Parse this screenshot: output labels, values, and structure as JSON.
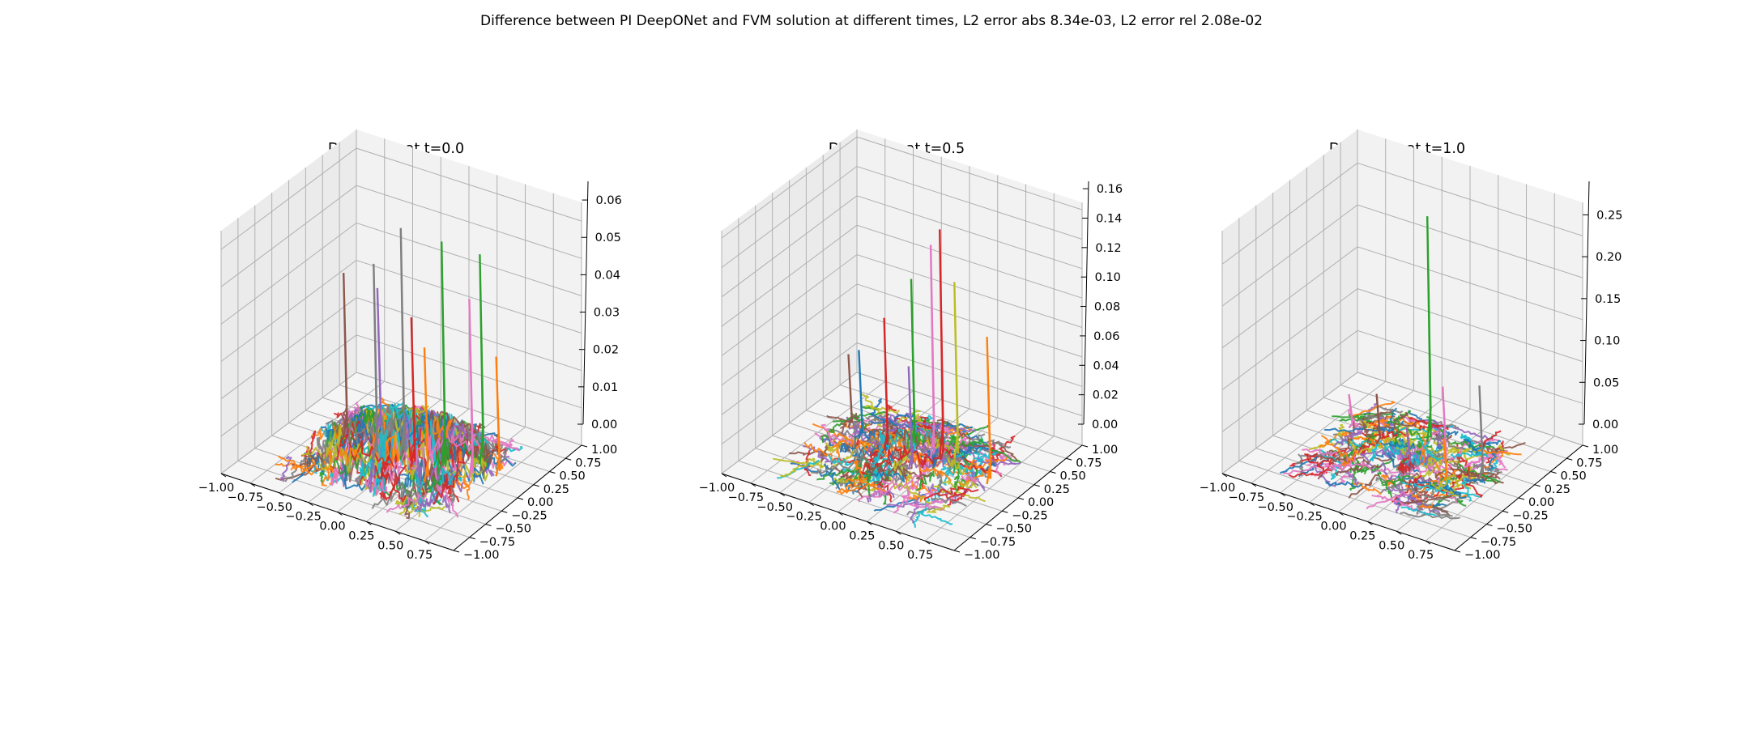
{
  "figure": {
    "suptitle": "Difference between PI DeepONet and FVM solution at different times, L2 error abs 8.34e-03, L2 error rel 2.08e-02"
  },
  "colors": [
    "#1f77b4",
    "#ff7f0e",
    "#2ca02c",
    "#d62728",
    "#9467bd",
    "#8c564b",
    "#e377c2",
    "#7f7f7f",
    "#bcbd22",
    "#17becf"
  ],
  "chart_data": [
    {
      "type": "line",
      "projection": "3d",
      "title": "Difference at t=0.0",
      "xlim": [
        -1.0,
        1.0
      ],
      "ylim": [
        -1.0,
        1.0
      ],
      "zlim": [
        0.0,
        0.065
      ],
      "x_ticks": [
        "−1.00",
        "−0.75",
        "−0.50",
        "−0.25",
        "0.00",
        "0.25",
        "0.50",
        "0.75"
      ],
      "y_ticks": [
        "−1.00",
        "−0.75",
        "−0.50",
        "−0.25",
        "0.00",
        "0.25",
        "0.50",
        "0.75",
        "1.00"
      ],
      "z_ticks": [
        "0.00",
        "0.01",
        "0.02",
        "0.03",
        "0.04",
        "0.05",
        "0.06"
      ],
      "z_tick_values": [
        0.0,
        0.01,
        0.02,
        0.03,
        0.04,
        0.05,
        0.06
      ],
      "grid": true,
      "peaks": [
        {
          "x": -0.05,
          "y": 0.05,
          "z": 0.061,
          "color": "#7f7f7f"
        },
        {
          "x": 0.25,
          "y": 0.15,
          "z": 0.059,
          "color": "#2ca02c"
        },
        {
          "x": 0.5,
          "y": 0.3,
          "z": 0.056,
          "color": "#2ca02c"
        },
        {
          "x": -0.2,
          "y": -0.1,
          "z": 0.052,
          "color": "#7f7f7f"
        },
        {
          "x": 0.55,
          "y": 0.05,
          "z": 0.048,
          "color": "#e377c2"
        },
        {
          "x": -0.55,
          "y": 0.05,
          "z": 0.044,
          "color": "#8c564b"
        },
        {
          "x": 0.1,
          "y": -0.05,
          "z": 0.04,
          "color": "#d62728"
        },
        {
          "x": -0.4,
          "y": 0.3,
          "z": 0.038,
          "color": "#9467bd"
        },
        {
          "x": 0.3,
          "y": -0.2,
          "z": 0.036,
          "color": "#ff7f0e"
        },
        {
          "x": 0.7,
          "y": 0.2,
          "z": 0.032,
          "color": "#ff7f0e"
        }
      ]
    },
    {
      "type": "line",
      "projection": "3d",
      "title": "Difference at t=0.5",
      "xlim": [
        -1.0,
        1.0
      ],
      "ylim": [
        -1.0,
        1.0
      ],
      "zlim": [
        0.0,
        0.165
      ],
      "x_ticks": [
        "−1.00",
        "−0.75",
        "−0.50",
        "−0.25",
        "0.00",
        "0.25",
        "0.50",
        "0.75"
      ],
      "y_ticks": [
        "−1.00",
        "−0.75",
        "−0.50",
        "−0.25",
        "0.00",
        "0.25",
        "0.50",
        "0.75",
        "1.00"
      ],
      "z_ticks": [
        "0.00",
        "0.02",
        "0.04",
        "0.06",
        "0.08",
        "0.10",
        "0.12",
        "0.14",
        "0.16"
      ],
      "z_tick_values": [
        0.0,
        0.02,
        0.04,
        0.06,
        0.08,
        0.1,
        0.12,
        0.14,
        0.16
      ],
      "grid": true,
      "peaks": [
        {
          "x": 0.2,
          "y": 0.2,
          "z": 0.155,
          "color": "#d62728"
        },
        {
          "x": 0.15,
          "y": 0.15,
          "z": 0.145,
          "color": "#e377c2"
        },
        {
          "x": 0.3,
          "y": 0.25,
          "z": 0.12,
          "color": "#bcbd22"
        },
        {
          "x": -0.05,
          "y": 0.2,
          "z": 0.115,
          "color": "#2ca02c"
        },
        {
          "x": 0.7,
          "y": 0.05,
          "z": 0.1,
          "color": "#ff7f0e"
        },
        {
          "x": -0.2,
          "y": 0.05,
          "z": 0.09,
          "color": "#d62728"
        },
        {
          "x": -0.45,
          "y": 0.1,
          "z": 0.06,
          "color": "#1f77b4"
        },
        {
          "x": 0.1,
          "y": -0.1,
          "z": 0.07,
          "color": "#9467bd"
        },
        {
          "x": -0.6,
          "y": 0.2,
          "z": 0.05,
          "color": "#8c564b"
        }
      ]
    },
    {
      "type": "line",
      "projection": "3d",
      "title": "Difference at t=1.0",
      "xlim": [
        -1.0,
        1.0
      ],
      "ylim": [
        -1.0,
        1.0
      ],
      "zlim": [
        0.0,
        0.29
      ],
      "x_ticks": [
        "−1.00",
        "−0.75",
        "−0.50",
        "−0.25",
        "0.00",
        "0.25",
        "0.50",
        "0.75"
      ],
      "y_ticks": [
        "−1.00",
        "−0.75",
        "−0.50",
        "−0.25",
        "0.00",
        "0.25",
        "0.50",
        "0.75",
        "1.00"
      ],
      "z_ticks": [
        "0.00",
        "0.05",
        "0.10",
        "0.15",
        "0.20",
        "0.25"
      ],
      "z_tick_values": [
        0.0,
        0.05,
        0.1,
        0.15,
        0.2,
        0.25
      ],
      "grid": true,
      "peaks": [
        {
          "x": 0.0,
          "y": 0.35,
          "z": 0.27,
          "color": "#2ca02c"
        },
        {
          "x": 0.6,
          "y": 0.1,
          "z": 0.11,
          "color": "#7f7f7f"
        },
        {
          "x": 0.25,
          "y": 0.15,
          "z": 0.09,
          "color": "#e377c2"
        },
        {
          "x": -0.3,
          "y": 0.1,
          "z": 0.06,
          "color": "#8c564b"
        },
        {
          "x": 0.4,
          "y": -0.1,
          "z": 0.05,
          "color": "#ff7f0e"
        },
        {
          "x": -0.6,
          "y": 0.2,
          "z": 0.04,
          "color": "#e377c2"
        },
        {
          "x": 0.05,
          "y": -0.05,
          "z": 0.045,
          "color": "#9467bd"
        }
      ]
    }
  ]
}
